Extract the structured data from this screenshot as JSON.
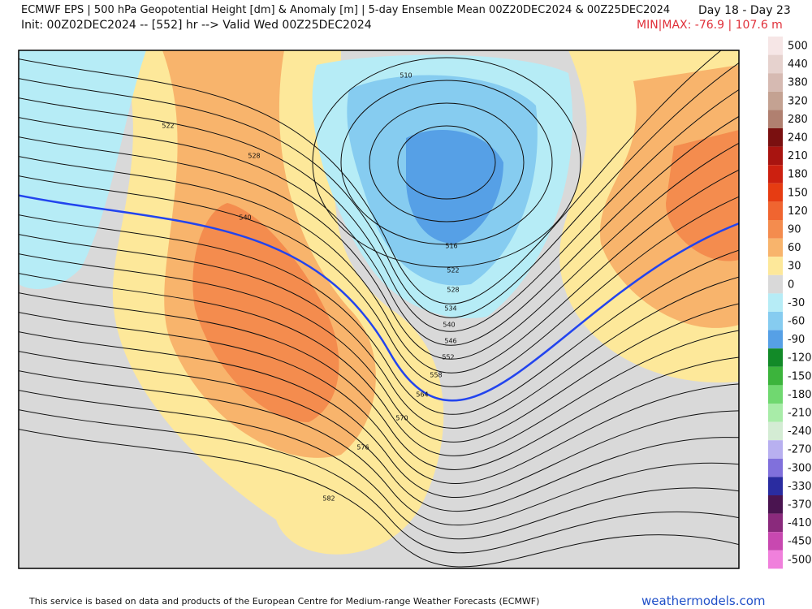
{
  "header": {
    "title": "ECMWF EPS | 500 hPa Geopotential Height [dm] & Anomaly [m] | 5-day Ensemble Mean 00Z20DEC2024 & 00Z25DEC2024",
    "days": "Day 18 - Day 23",
    "init": "Init: 00Z02DEC2024 -- [552] hr --> Valid Wed 00Z25DEC2024",
    "minmax": "MIN|MAX: -76.9 | 107.6 m"
  },
  "colorbar": [
    {
      "label": "500",
      "color": "#f6e6e6"
    },
    {
      "label": "440",
      "color": "#e6d2ce"
    },
    {
      "label": "380",
      "color": "#d6bab2"
    },
    {
      "label": "320",
      "color": "#c4a292"
    },
    {
      "label": "280",
      "color": "#b08070"
    },
    {
      "label": "240",
      "color": "#7a1010"
    },
    {
      "label": "210",
      "color": "#a81410"
    },
    {
      "label": "180",
      "color": "#cc2010"
    },
    {
      "label": "150",
      "color": "#e63c12"
    },
    {
      "label": "120",
      "color": "#f06530"
    },
    {
      "label": "90",
      "color": "#f48c4e"
    },
    {
      "label": "60",
      "color": "#f8b46c"
    },
    {
      "label": "30",
      "color": "#fde89a"
    },
    {
      "label": "0",
      "color": "#d9d9d9"
    },
    {
      "label": "-30",
      "color": "#b6ecf6"
    },
    {
      "label": "-60",
      "color": "#86ccf0"
    },
    {
      "label": "-90",
      "color": "#56a0e6"
    },
    {
      "label": "-120",
      "color": "#128a28"
    },
    {
      "label": "-150",
      "color": "#3cb43c"
    },
    {
      "label": "-180",
      "color": "#70d870"
    },
    {
      "label": "-210",
      "color": "#a8eca8"
    },
    {
      "label": "-240",
      "color": "#d4ecd4"
    },
    {
      "label": "-270",
      "color": "#b8b0f0"
    },
    {
      "label": "-300",
      "color": "#8070dc"
    },
    {
      "label": "-330",
      "color": "#2a2ca0"
    },
    {
      "label": "-370",
      "color": "#4a1450"
    },
    {
      "label": "-410",
      "color": "#8a2a7c"
    },
    {
      "label": "-450",
      "color": "#c848b0"
    },
    {
      "label": "-500",
      "color": "#f080dc"
    }
  ],
  "contours": [
    "510",
    "516",
    "522",
    "528",
    "534",
    "540",
    "546",
    "552",
    "558",
    "564",
    "570",
    "576",
    "582",
    "522",
    "528",
    "540"
  ],
  "footer": {
    "note": "This service is based on data and products of the European Centre for Medium-range Weather Forecasts (ECMWF)",
    "site": "weathermodels.com"
  }
}
